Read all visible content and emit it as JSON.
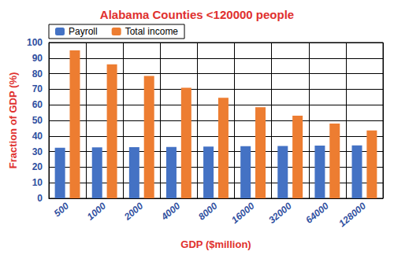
{
  "chart_data": {
    "type": "bar",
    "title": "Alabama Counties <120000 people",
    "x_label": "GDP ($million)",
    "y_label": "Fraction of GDP (%)",
    "categories": [
      "500",
      "1000",
      "2000",
      "4000",
      "8000",
      "16000",
      "32000",
      "64000",
      "128000"
    ],
    "series": [
      {
        "name": "Payroll",
        "color": "#4472c4",
        "values": [
          32.5,
          32.7,
          32.8,
          33.0,
          33.2,
          33.4,
          33.6,
          33.8,
          34.0
        ]
      },
      {
        "name": "Total income",
        "color": "#ed7d31",
        "values": [
          95,
          86,
          78.5,
          71,
          64.5,
          58.5,
          53,
          48,
          43.5
        ]
      }
    ],
    "ylim": [
      0,
      100
    ],
    "yticks": [
      0,
      10,
      20,
      30,
      40,
      50,
      60,
      70,
      80,
      90,
      100
    ],
    "grid": true,
    "legend": "top-left"
  }
}
